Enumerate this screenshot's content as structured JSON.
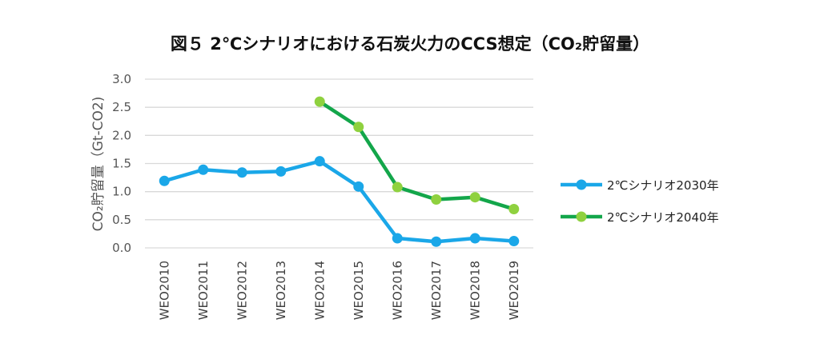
{
  "chart_data": {
    "type": "line",
    "title": "図５ 2℃シナリオにおける石炭火力のCCS想定（CO₂貯留量）",
    "ylabel": "CO₂貯留量（Gt-CO2)",
    "xlabel": "",
    "ylim": [
      0,
      3.0
    ],
    "yticks": [
      "0.0",
      "0.5",
      "1.0",
      "1.5",
      "2.0",
      "2.5",
      "3.0"
    ],
    "ytick_values": [
      0,
      0.5,
      1.0,
      1.5,
      2.0,
      2.5,
      3.0
    ],
    "categories": [
      "WEO2010",
      "WEO2011",
      "WEO2012",
      "WEO2013",
      "WEO2014",
      "WEO2015",
      "WEO2016",
      "WEO2017",
      "WEO2018",
      "WEO2019"
    ],
    "grid": true,
    "legend_position": "right",
    "series": [
      {
        "name": "2℃シナリオ2030年",
        "color": "#1aa7e8",
        "values": [
          1.19,
          1.39,
          1.34,
          1.36,
          1.54,
          1.09,
          0.17,
          0.11,
          0.17,
          0.12
        ]
      },
      {
        "name": "2℃シナリオ2040年",
        "color": "#13a64a",
        "marker_color": "#8fd13f",
        "values": [
          null,
          null,
          null,
          null,
          2.6,
          2.15,
          1.08,
          0.86,
          0.9,
          0.69
        ]
      }
    ]
  }
}
